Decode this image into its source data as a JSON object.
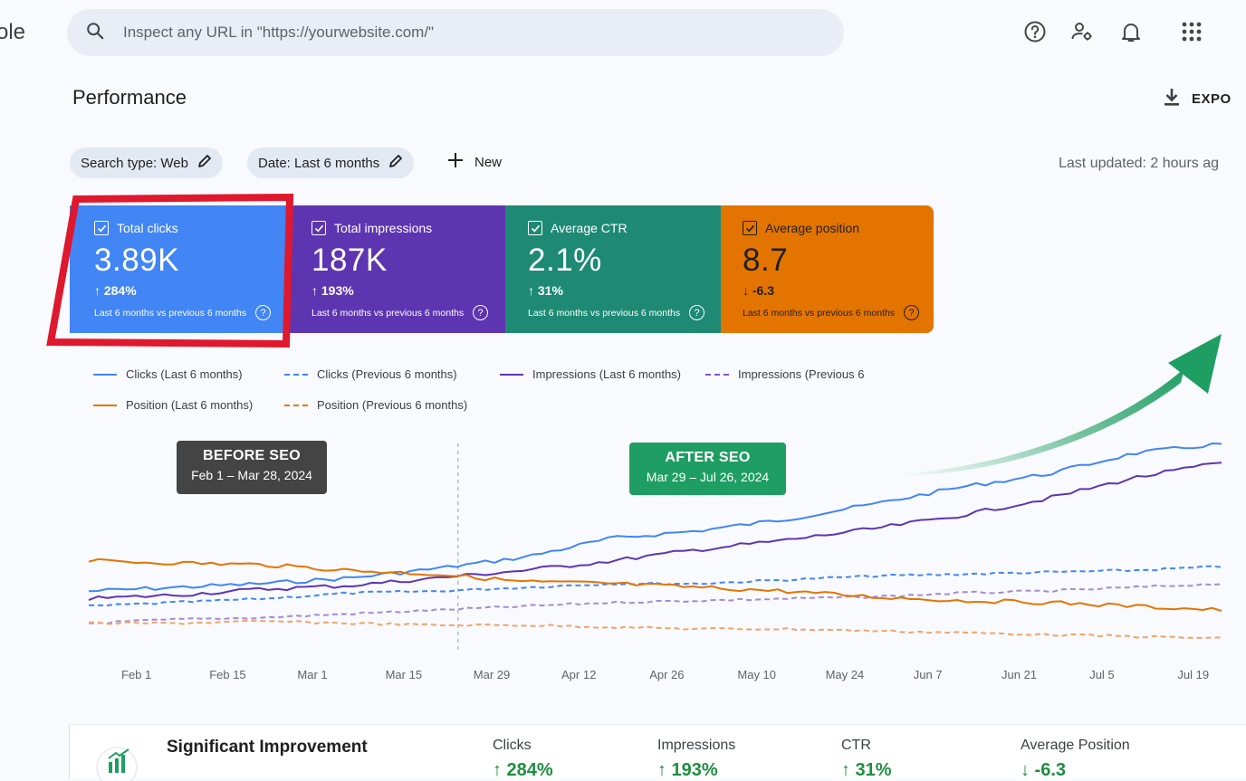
{
  "app": {
    "logo_fragment": "ole"
  },
  "search": {
    "placeholder": "Inspect any URL in \"https://yourwebsite.com/\""
  },
  "header_icons": [
    "help-icon",
    "manage-users-icon",
    "notifications-icon",
    "apps-grid-icon"
  ],
  "page": {
    "title": "Performance",
    "export_label": "EXPO"
  },
  "filters": {
    "search_type": "Search type: Web",
    "date": "Date: Last 6 months",
    "new_label": "New",
    "last_updated": "Last updated: 2 hours ag"
  },
  "metrics": [
    {
      "label": "Total clicks",
      "value": "3.89K",
      "change": "↑ 284%",
      "compare": "Last 6 months vs previous 6 months",
      "color": "#4285f4"
    },
    {
      "label": "Total impressions",
      "value": "187K",
      "change": "↑ 193%",
      "compare": "Last 6 months vs previous 6 months",
      "color": "#5e35b1"
    },
    {
      "label": "Average CTR",
      "value": "2.1%",
      "change": "↑ 31%",
      "compare": "Last 6 months vs previous 6 months",
      "color": "#1e8a74"
    },
    {
      "label": "Average position",
      "value": "8.7",
      "change": "↓ -6.3",
      "compare": "Last 6 months vs previous 6 months",
      "color": "#e37400"
    }
  ],
  "highlight_color": "#e0182d",
  "legend": [
    {
      "label": "Clicks (Last 6 months)",
      "color": "#4285f4",
      "style": "solid"
    },
    {
      "label": "Clicks (Previous 6 months)",
      "color": "#4285f4",
      "style": "dashed"
    },
    {
      "label": "Impressions (Last 6 months)",
      "color": "#5e35b1",
      "style": "solid"
    },
    {
      "label": "Impressions (Previous 6",
      "color": "#5e35b1",
      "style": "dashed"
    },
    {
      "label": "Position (Last 6 months)",
      "color": "#e37400",
      "style": "solid"
    },
    {
      "label": "Position (Previous 6 months)",
      "color": "#e37400",
      "style": "dashed"
    }
  ],
  "annotations": {
    "before": {
      "title": "BEFORE SEO",
      "dates": "Feb 1 – Mar 28, 2024",
      "color": "#444444"
    },
    "after": {
      "title": "AFTER SEO",
      "dates": "Mar 29 – Jul 26, 2024",
      "color": "#1e9e62"
    }
  },
  "chart_data": {
    "type": "line",
    "x_ticks": [
      "Feb 1",
      "Feb 15",
      "Mar 1",
      "Mar 15",
      "Mar 29",
      "Apr 12",
      "Apr 26",
      "May 10",
      "May 24",
      "Jun 7",
      "Jun 21",
      "Jul 5",
      "Jul 19"
    ],
    "y_axis_visible": false,
    "divider_at": "Mar 29",
    "series": [
      {
        "name": "Clicks (Last 6 months)",
        "style": "solid",
        "color": "#4285f4",
        "values": [
          22,
          24,
          26,
          29,
          34,
          40,
          50,
          54,
          60,
          68,
          77,
          84,
          95,
          100
        ]
      },
      {
        "name": "Clicks (Previous 6 months)",
        "style": "dashed",
        "color": "#4285f4",
        "values": [
          14,
          16,
          18,
          21,
          22,
          24,
          26,
          26,
          28,
          30,
          31,
          32,
          33,
          35
        ]
      },
      {
        "name": "Impressions (Last 6 months)",
        "style": "solid",
        "color": "#5e35b1",
        "values": [
          18,
          20,
          23,
          25,
          29,
          33,
          38,
          44,
          49,
          55,
          62,
          71,
          82,
          90
        ]
      },
      {
        "name": "Impressions (Previous 6",
        "style": "dashed",
        "color": "#5e35b1",
        "values": [
          5,
          7,
          8,
          10,
          12,
          14,
          16,
          17,
          18,
          19,
          21,
          22,
          24,
          26
        ]
      },
      {
        "name": "Position (Last 6 months)",
        "style": "solid",
        "color": "#e37400",
        "values": [
          38,
          37,
          36,
          33,
          31,
          27,
          26,
          24,
          22,
          19,
          17,
          16,
          14,
          12
        ]
      },
      {
        "name": "Position (Previous 6 months)",
        "style": "dashed",
        "color": "#e37400",
        "values": [
          5,
          5,
          6,
          5,
          4,
          4,
          3,
          2,
          2,
          1,
          0,
          -1,
          -2,
          -3
        ]
      }
    ]
  },
  "summary": {
    "title": "Significant Improvement",
    "columns": [
      {
        "label": "Clicks",
        "value": "↑ 284%"
      },
      {
        "label": "Impressions",
        "value": "↑ 193%"
      },
      {
        "label": "CTR",
        "value": "↑ 31%"
      },
      {
        "label": "Average Position",
        "value": "↓ -6.3"
      }
    ]
  }
}
